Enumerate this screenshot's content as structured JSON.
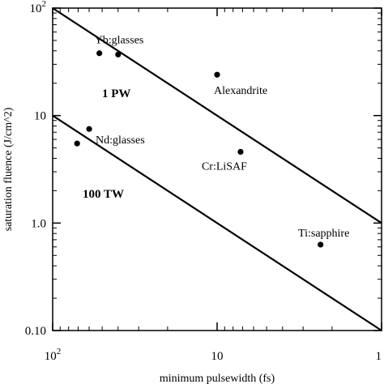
{
  "chart_data": {
    "type": "scatter",
    "xlabel": "minimum pulsewidth (fs)",
    "ylabel": "saturation fluence (J/cm^2)",
    "x_scale": "log",
    "y_scale": "log",
    "x_reversed": true,
    "xlim": [
      100,
      1
    ],
    "ylim": [
      0.1,
      100
    ],
    "grid": false,
    "x_ticks": [
      {
        "value": 100,
        "label": "10",
        "sup": "2"
      },
      {
        "value": 10,
        "label": "10",
        "sup": ""
      },
      {
        "value": 1,
        "label": "1",
        "sup": ""
      }
    ],
    "y_ticks": [
      {
        "value": 100,
        "label": "10",
        "sup": "2"
      },
      {
        "value": 10,
        "label": "10",
        "sup": ""
      },
      {
        "value": 1,
        "label": "1.0",
        "sup": ""
      },
      {
        "value": 0.1,
        "label": "0.10",
        "sup": ""
      }
    ],
    "series": [
      {
        "points": [
          {
            "x": 52,
            "y": 38,
            "label": "Yb:glasses"
          },
          {
            "x": 40,
            "y": 37,
            "label": ""
          },
          {
            "x": 10,
            "y": 24,
            "label": "Alexandrite"
          },
          {
            "x": 60,
            "y": 7.5,
            "label": "Nd:glasses"
          },
          {
            "x": 71,
            "y": 5.5,
            "label": ""
          },
          {
            "x": 7.2,
            "y": 4.6,
            "label": "Cr:LiSAF"
          },
          {
            "x": 2.35,
            "y": 0.63,
            "label": "Ti:sapphire"
          }
        ]
      }
    ],
    "reference_lines": [
      {
        "label": "1 PW",
        "from": {
          "x": 100,
          "y": 100
        },
        "to": {
          "x": 1,
          "y": 1
        }
      },
      {
        "label": "100 TW",
        "from": {
          "x": 100,
          "y": 10
        },
        "to": {
          "x": 1,
          "y": 0.1
        }
      }
    ]
  }
}
